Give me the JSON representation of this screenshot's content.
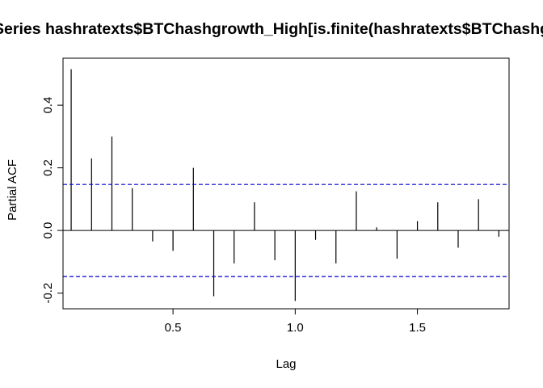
{
  "chart_data": {
    "type": "bar",
    "title": "Series  hashratexts$BTChashgrowth_High[is.finite(hashratexts$BTChashgrowth_High)]",
    "xlabel": "Lag",
    "ylabel": "Partial ACF",
    "xlim": [
      0.05,
      1.875
    ],
    "ylim": [
      -0.25,
      0.55
    ],
    "x_ticks": [
      0.5,
      1.0,
      1.5
    ],
    "x_tick_labels": [
      "0.5",
      "1.0",
      "1.5"
    ],
    "y_ticks": [
      -0.2,
      0.0,
      0.2,
      0.4
    ],
    "y_tick_labels": [
      "-0.2",
      "0.0",
      "0.2",
      "0.4"
    ],
    "confidence_bound": 0.147,
    "confidence_color": "#0000cc",
    "series": [
      {
        "lags": [
          0.0833,
          0.1667,
          0.25,
          0.3333,
          0.4167,
          0.5,
          0.5833,
          0.6667,
          0.75,
          0.8333,
          0.9167,
          1.0,
          1.0833,
          1.1667,
          1.25,
          1.3333,
          1.4167,
          1.5,
          1.5833,
          1.6667,
          1.75,
          1.8333
        ],
        "values": [
          0.515,
          0.23,
          0.3,
          0.135,
          -0.035,
          -0.065,
          0.2,
          -0.21,
          -0.105,
          0.09,
          -0.095,
          -0.225,
          -0.03,
          -0.105,
          0.125,
          0.01,
          -0.09,
          0.03,
          0.09,
          -0.055,
          0.1,
          -0.02
        ]
      }
    ]
  }
}
